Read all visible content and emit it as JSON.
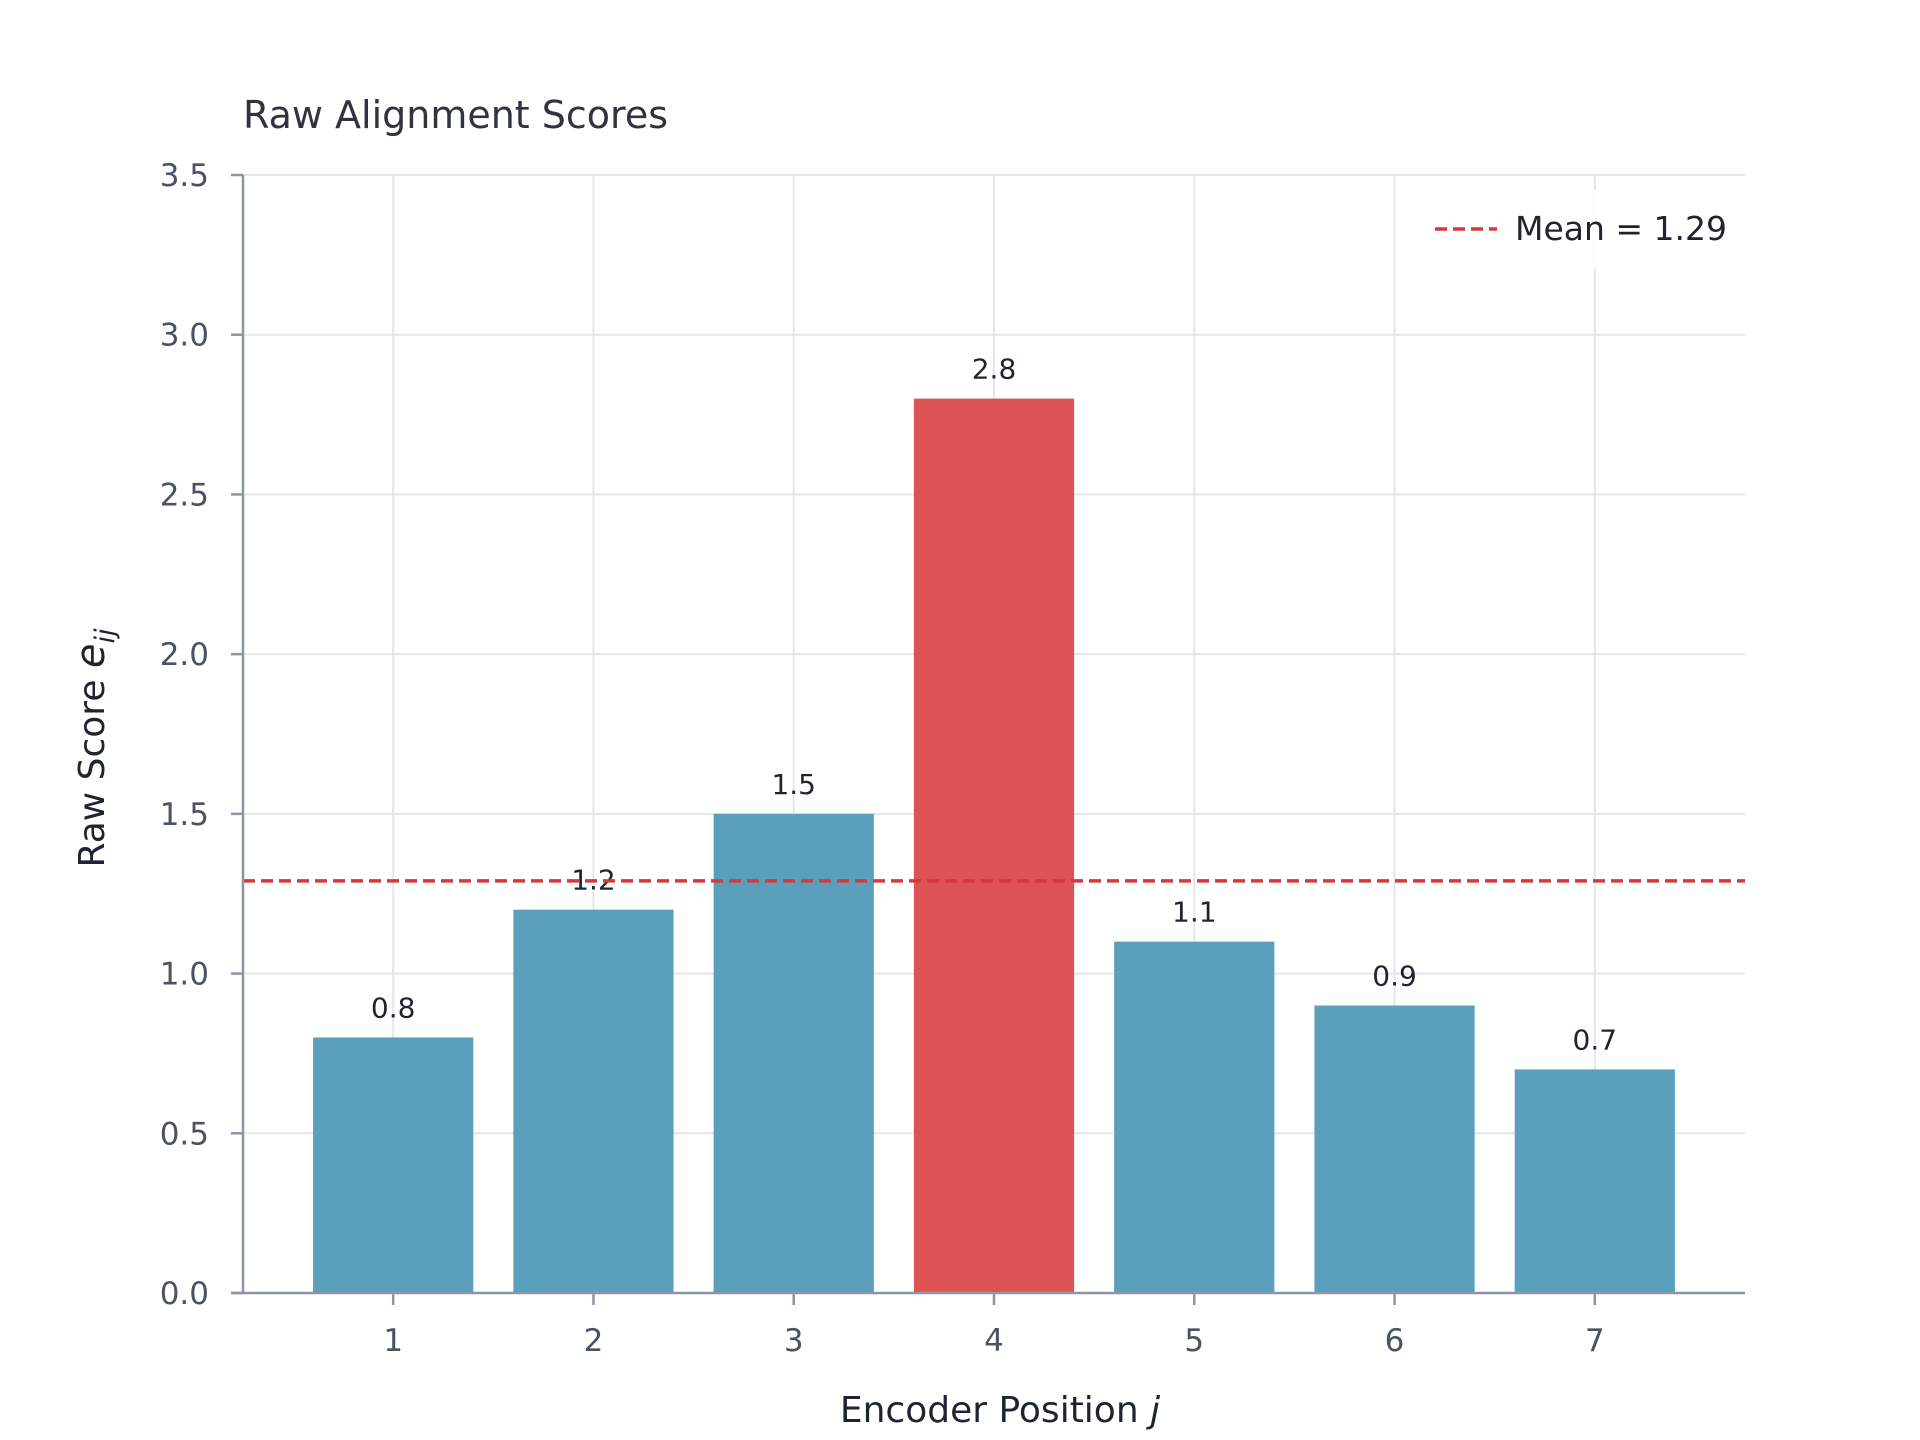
{
  "chart_data": {
    "type": "bar",
    "title": "Raw Alignment Scores",
    "xlabel": "Encoder Position",
    "xlabel_var": "j",
    "ylabel": "Raw Score",
    "ylabel_var": "e",
    "ylabel_sub": "ij",
    "categories": [
      "1",
      "2",
      "3",
      "4",
      "5",
      "6",
      "7"
    ],
    "values": [
      0.8,
      1.2,
      1.5,
      2.8,
      1.1,
      0.9,
      0.7
    ],
    "value_labels": [
      "0.8",
      "1.2",
      "1.5",
      "2.8",
      "1.1",
      "0.9",
      "0.7"
    ],
    "highlight_index": 3,
    "ylim": [
      0,
      3.5
    ],
    "yticks": [
      0.0,
      0.5,
      1.0,
      1.5,
      2.0,
      2.5,
      3.0,
      3.5
    ],
    "ytick_labels": [
      "0.0",
      "0.5",
      "1.0",
      "1.5",
      "2.0",
      "2.5",
      "3.0",
      "3.5"
    ],
    "mean": 1.29,
    "legend": {
      "label": "Mean = 1.29",
      "placement": "top-right"
    },
    "grid": true,
    "colors": {
      "bar": "#5a9fbb",
      "highlight": "#dd5255",
      "mean_line": "#d33a3d"
    }
  }
}
